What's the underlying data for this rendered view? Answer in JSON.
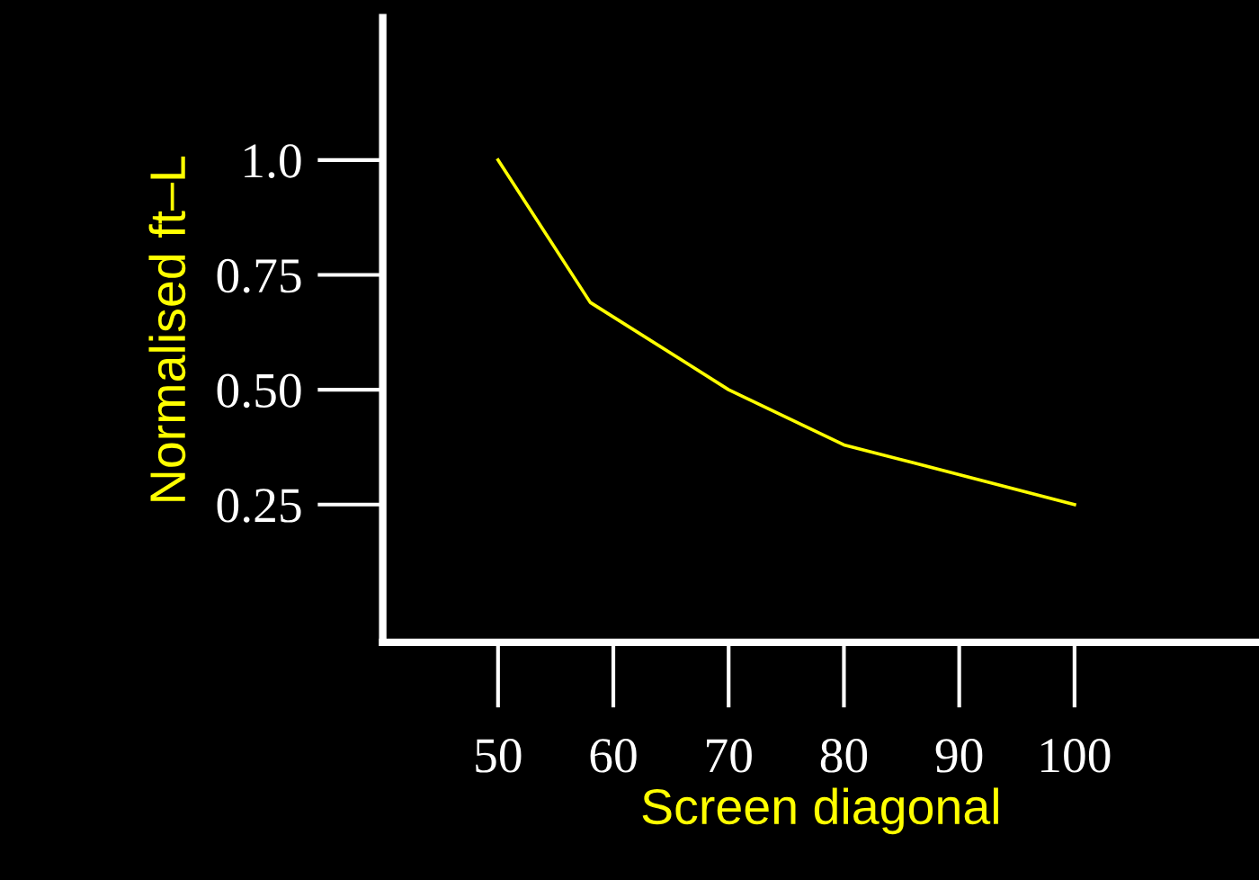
{
  "chart_data": {
    "type": "line",
    "xlabel": "Screen diagonal",
    "ylabel": "Normalised ft–L",
    "x": [
      50,
      58,
      70,
      80,
      100
    ],
    "series": [
      {
        "color": "#ffff00",
        "values": [
          1.0,
          0.69,
          0.5,
          0.38,
          0.25
        ]
      }
    ],
    "xlim": [
      40,
      116
    ],
    "ylim": [
      -0.05,
      1.31
    ],
    "xticks": [
      50,
      60,
      70,
      80,
      90,
      100
    ],
    "yticks": [
      {
        "value": 1.0,
        "label": "1.0"
      },
      0.75,
      {
        "value": 0.5,
        "label": "0.50"
      },
      0.25
    ],
    "grid": false,
    "legend": false,
    "marker": "none",
    "line_style": "solid"
  }
}
